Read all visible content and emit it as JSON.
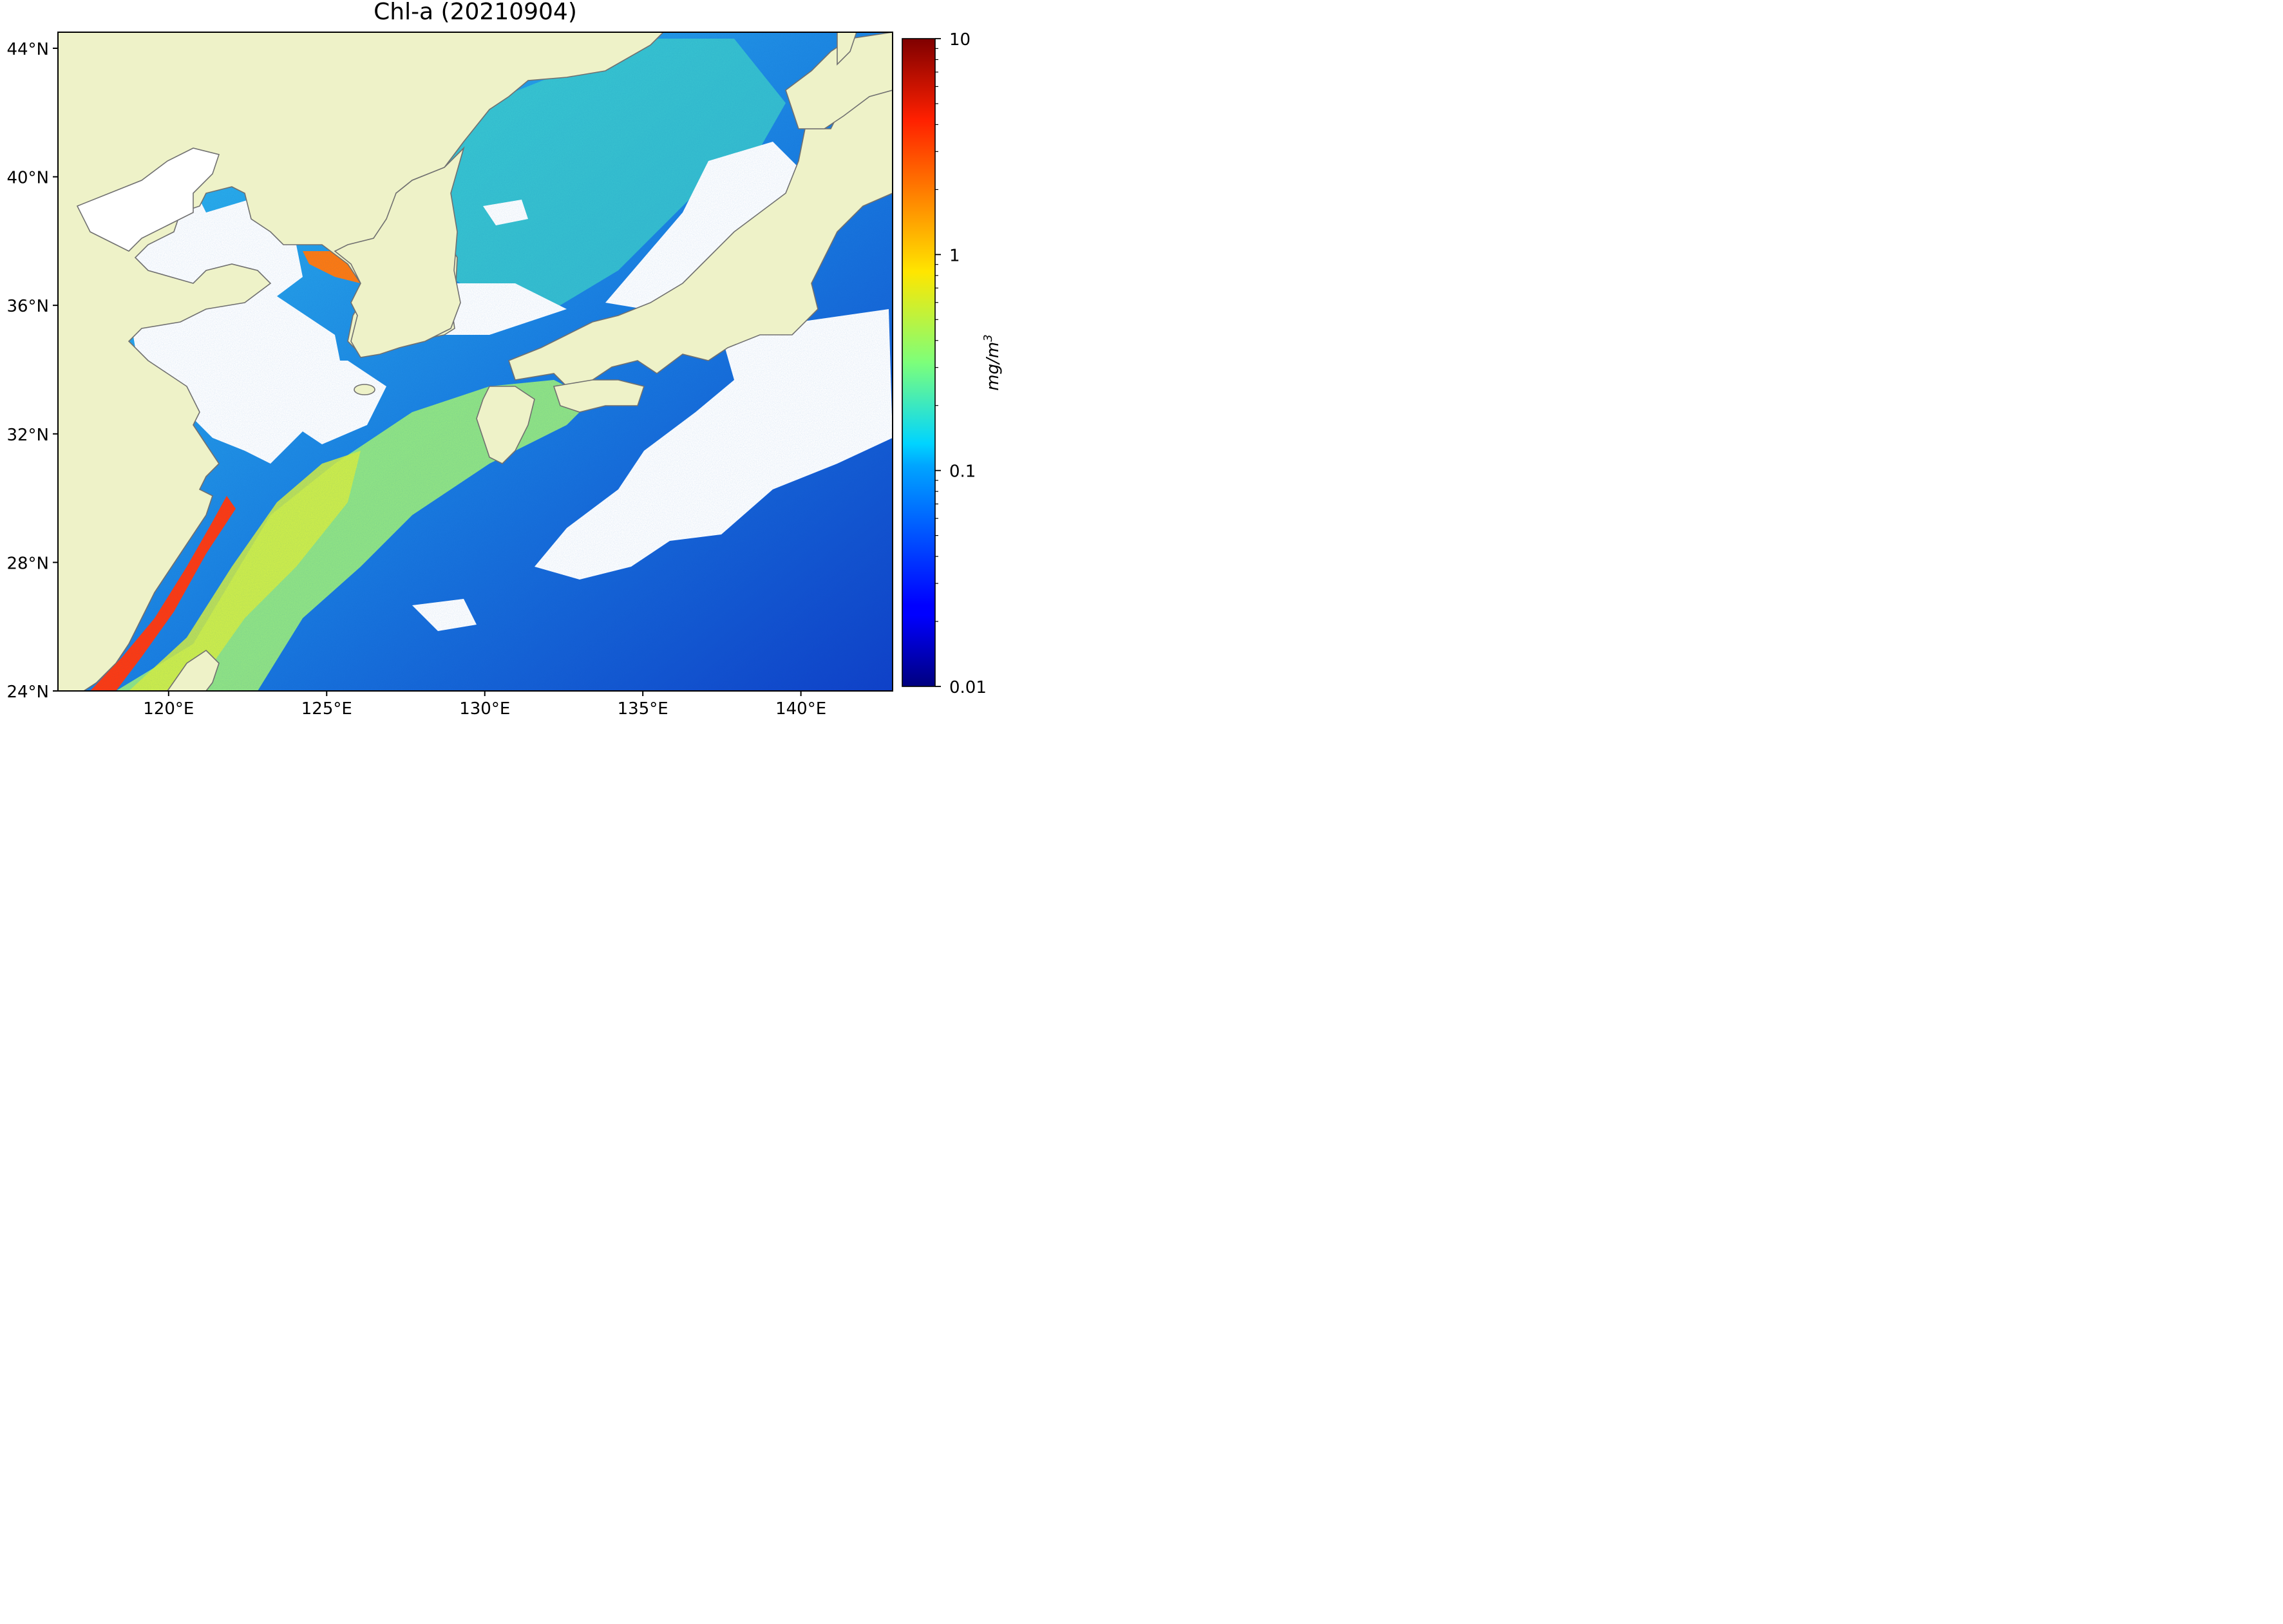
{
  "title": "Chl-a (20210904)",
  "map": {
    "lat_range": [
      24,
      44.5
    ],
    "lon_range": [
      116.5,
      142.9
    ],
    "lat_ticks": [
      {
        "value": 44,
        "label": "44°N"
      },
      {
        "value": 40,
        "label": "40°N"
      },
      {
        "value": 36,
        "label": "36°N"
      },
      {
        "value": 32,
        "label": "32°N"
      },
      {
        "value": 28,
        "label": "28°N"
      },
      {
        "value": 24,
        "label": "24°N"
      }
    ],
    "lon_ticks": [
      {
        "value": 120,
        "label": "120°E"
      },
      {
        "value": 125,
        "label": "125°E"
      },
      {
        "value": 130,
        "label": "130°E"
      },
      {
        "value": 135,
        "label": "135°E"
      },
      {
        "value": 140,
        "label": "140°E"
      }
    ],
    "land_color": "#eef2c8",
    "coastline_color": "#707070",
    "no_data_color": "#ffffff"
  },
  "colorbar": {
    "label": "mg/m",
    "label_superscript": "3",
    "scale": "log",
    "range": [
      0.01,
      10
    ],
    "colormap": "jet",
    "ticks": [
      {
        "value": 10,
        "label": "10"
      },
      {
        "value": 1,
        "label": "1"
      },
      {
        "value": 0.1,
        "label": "0.1"
      },
      {
        "value": 0.01,
        "label": "0.01"
      }
    ]
  }
}
